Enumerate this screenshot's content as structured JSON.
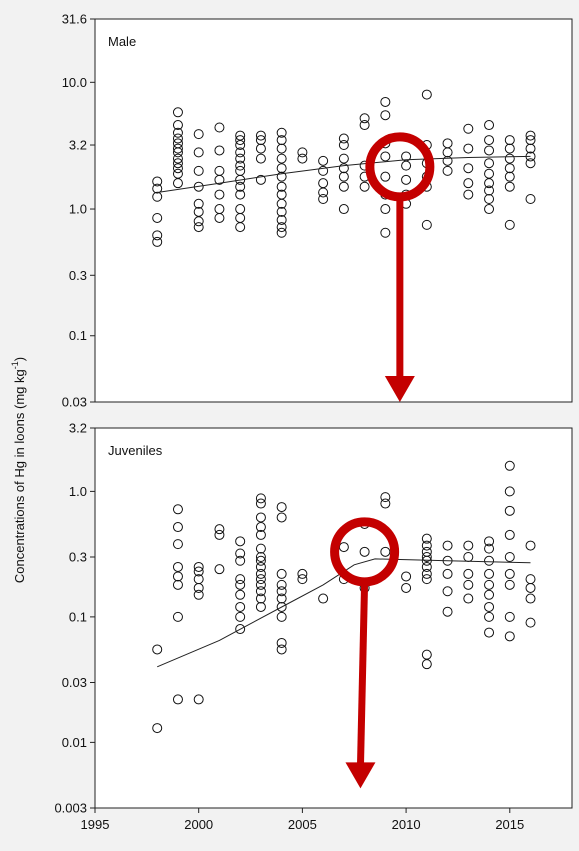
{
  "chart_data": {
    "type": "scatter",
    "ylabel": "Concentrations of Hg in loons (mg kg",
    "ylabel_sup": "-1",
    "ylabel_close": ")",
    "xlim": [
      1995,
      2018
    ],
    "x_ticks": [
      1995,
      2000,
      2005,
      2010,
      2015
    ],
    "x_tick_labels": [
      "1995",
      "2000",
      "2005",
      "2010",
      "2015"
    ],
    "annotation_color": "#c40000",
    "panels": [
      {
        "id": "male",
        "label": "Male",
        "yscale": "log",
        "ylim": [
          0.03,
          31.6
        ],
        "y_ticks": [
          0.03,
          0.1,
          0.3,
          1.0,
          3.2,
          10.0,
          31.6
        ],
        "y_tick_labels": [
          "0.03",
          "0.1",
          "0.3",
          "1.0",
          "3.2",
          "10.0",
          "31.6"
        ],
        "points": [
          [
            1998,
            0.55
          ],
          [
            1998,
            0.62
          ],
          [
            1998,
            0.85
          ],
          [
            1998,
            1.25
          ],
          [
            1998,
            1.45
          ],
          [
            1998,
            1.65
          ],
          [
            1999,
            1.6
          ],
          [
            1999,
            1.9
          ],
          [
            1999,
            2.1
          ],
          [
            1999,
            2.3
          ],
          [
            1999,
            2.5
          ],
          [
            1999,
            2.8
          ],
          [
            1999,
            3.0
          ],
          [
            1999,
            3.3
          ],
          [
            1999,
            3.6
          ],
          [
            1999,
            4.0
          ],
          [
            1999,
            4.6
          ],
          [
            1999,
            5.8
          ],
          [
            2000,
            0.72
          ],
          [
            2000,
            0.8
          ],
          [
            2000,
            0.95
          ],
          [
            2000,
            1.1
          ],
          [
            2000,
            1.5
          ],
          [
            2000,
            2.0
          ],
          [
            2000,
            2.8
          ],
          [
            2000,
            3.9
          ],
          [
            2001,
            0.85
          ],
          [
            2001,
            1.0
          ],
          [
            2001,
            1.3
          ],
          [
            2001,
            1.7
          ],
          [
            2001,
            2.0
          ],
          [
            2001,
            2.9
          ],
          [
            2001,
            4.4
          ],
          [
            2002,
            0.72
          ],
          [
            2002,
            0.85
          ],
          [
            2002,
            1.0
          ],
          [
            2002,
            1.3
          ],
          [
            2002,
            1.5
          ],
          [
            2002,
            1.7
          ],
          [
            2002,
            2.0
          ],
          [
            2002,
            2.2
          ],
          [
            2002,
            2.5
          ],
          [
            2002,
            2.8
          ],
          [
            2002,
            3.2
          ],
          [
            2002,
            3.5
          ],
          [
            2002,
            3.8
          ],
          [
            2003,
            1.7
          ],
          [
            2003,
            2.5
          ],
          [
            2003,
            3.0
          ],
          [
            2003,
            3.5
          ],
          [
            2003,
            3.8
          ],
          [
            2004,
            0.65
          ],
          [
            2004,
            0.72
          ],
          [
            2004,
            0.82
          ],
          [
            2004,
            0.95
          ],
          [
            2004,
            1.1
          ],
          [
            2004,
            1.3
          ],
          [
            2004,
            1.5
          ],
          [
            2004,
            1.8
          ],
          [
            2004,
            2.1
          ],
          [
            2004,
            2.5
          ],
          [
            2004,
            3.0
          ],
          [
            2004,
            3.5
          ],
          [
            2004,
            4.0
          ],
          [
            2005,
            2.5
          ],
          [
            2005,
            2.8
          ],
          [
            2006,
            1.2
          ],
          [
            2006,
            1.35
          ],
          [
            2006,
            1.6
          ],
          [
            2006,
            2.0
          ],
          [
            2006,
            2.4
          ],
          [
            2007,
            1.0
          ],
          [
            2007,
            1.5
          ],
          [
            2007,
            1.8
          ],
          [
            2007,
            2.1
          ],
          [
            2007,
            2.5
          ],
          [
            2007,
            3.2
          ],
          [
            2007,
            3.6
          ],
          [
            2008,
            1.5
          ],
          [
            2008,
            1.8
          ],
          [
            2008,
            2.2
          ],
          [
            2008,
            4.6
          ],
          [
            2008,
            5.2
          ],
          [
            2009,
            0.65
          ],
          [
            2009,
            1.0
          ],
          [
            2009,
            1.3
          ],
          [
            2009,
            1.8
          ],
          [
            2009,
            2.6
          ],
          [
            2009,
            3.3
          ],
          [
            2009,
            5.5
          ],
          [
            2009,
            7.0
          ],
          [
            2010,
            1.1
          ],
          [
            2010,
            1.3
          ],
          [
            2010,
            1.7
          ],
          [
            2010,
            2.2
          ],
          [
            2010,
            2.6
          ],
          [
            2011,
            0.75
          ],
          [
            2011,
            1.5
          ],
          [
            2011,
            1.8
          ],
          [
            2011,
            2.3
          ],
          [
            2011,
            3.2
          ],
          [
            2011,
            8.0
          ],
          [
            2012,
            2.0
          ],
          [
            2012,
            2.4
          ],
          [
            2012,
            2.8
          ],
          [
            2012,
            3.3
          ],
          [
            2013,
            1.3
          ],
          [
            2013,
            1.6
          ],
          [
            2013,
            2.1
          ],
          [
            2013,
            3.0
          ],
          [
            2013,
            4.3
          ],
          [
            2014,
            1.0
          ],
          [
            2014,
            1.2
          ],
          [
            2014,
            1.4
          ],
          [
            2014,
            1.6
          ],
          [
            2014,
            1.9
          ],
          [
            2014,
            2.3
          ],
          [
            2014,
            2.9
          ],
          [
            2014,
            3.5
          ],
          [
            2014,
            4.6
          ],
          [
            2015,
            0.75
          ],
          [
            2015,
            1.5
          ],
          [
            2015,
            1.8
          ],
          [
            2015,
            2.1
          ],
          [
            2015,
            2.5
          ],
          [
            2015,
            3.0
          ],
          [
            2015,
            3.5
          ],
          [
            2016,
            1.2
          ],
          [
            2016,
            2.3
          ],
          [
            2016,
            2.6
          ],
          [
            2016,
            3.0
          ],
          [
            2016,
            3.5
          ],
          [
            2016,
            3.8
          ]
        ],
        "trend": [
          [
            1998,
            1.35
          ],
          [
            2001,
            1.6
          ],
          [
            2004,
            1.9
          ],
          [
            2007,
            2.2
          ],
          [
            2010,
            2.45
          ],
          [
            2013,
            2.55
          ],
          [
            2016,
            2.6
          ]
        ],
        "highlight": {
          "x": 2009.7,
          "y": 2.15
        },
        "arrow_end": {
          "x": 2009.7,
          "y": 0.03
        }
      },
      {
        "id": "juveniles",
        "label": "Juveniles",
        "yscale": "log",
        "ylim": [
          0.003,
          3.2
        ],
        "y_ticks": [
          0.003,
          0.01,
          0.03,
          0.1,
          0.3,
          1.0,
          3.2
        ],
        "y_tick_labels": [
          "0.003",
          "0.01",
          "0.03",
          "0.1",
          "0.3",
          "1.0",
          "3.2"
        ],
        "points": [
          [
            1998,
            0.013
          ],
          [
            1998,
            0.055
          ],
          [
            1999,
            0.022
          ],
          [
            1999,
            0.1
          ],
          [
            1999,
            0.18
          ],
          [
            1999,
            0.21
          ],
          [
            1999,
            0.25
          ],
          [
            1999,
            0.38
          ],
          [
            1999,
            0.52
          ],
          [
            1999,
            0.72
          ],
          [
            2000,
            0.022
          ],
          [
            2000,
            0.15
          ],
          [
            2000,
            0.17
          ],
          [
            2000,
            0.2
          ],
          [
            2000,
            0.23
          ],
          [
            2000,
            0.25
          ],
          [
            2001,
            0.24
          ],
          [
            2001,
            0.45
          ],
          [
            2001,
            0.5
          ],
          [
            2002,
            0.08
          ],
          [
            2002,
            0.1
          ],
          [
            2002,
            0.12
          ],
          [
            2002,
            0.15
          ],
          [
            2002,
            0.18
          ],
          [
            2002,
            0.2
          ],
          [
            2002,
            0.28
          ],
          [
            2002,
            0.32
          ],
          [
            2002,
            0.4
          ],
          [
            2003,
            0.12
          ],
          [
            2003,
            0.14
          ],
          [
            2003,
            0.16
          ],
          [
            2003,
            0.18
          ],
          [
            2003,
            0.2
          ],
          [
            2003,
            0.22
          ],
          [
            2003,
            0.25
          ],
          [
            2003,
            0.28
          ],
          [
            2003,
            0.3
          ],
          [
            2003,
            0.35
          ],
          [
            2003,
            0.45
          ],
          [
            2003,
            0.52
          ],
          [
            2003,
            0.62
          ],
          [
            2003,
            0.8
          ],
          [
            2003,
            0.88
          ],
          [
            2004,
            0.055
          ],
          [
            2004,
            0.062
          ],
          [
            2004,
            0.1
          ],
          [
            2004,
            0.12
          ],
          [
            2004,
            0.14
          ],
          [
            2004,
            0.16
          ],
          [
            2004,
            0.18
          ],
          [
            2004,
            0.22
          ],
          [
            2004,
            0.62
          ],
          [
            2004,
            0.75
          ],
          [
            2005,
            0.2
          ],
          [
            2005,
            0.22
          ],
          [
            2006,
            0.14
          ],
          [
            2007,
            0.2
          ],
          [
            2007,
            0.36
          ],
          [
            2008,
            0.17
          ],
          [
            2008,
            0.33
          ],
          [
            2008,
            0.55
          ],
          [
            2009,
            0.33
          ],
          [
            2009,
            0.8
          ],
          [
            2009,
            0.9
          ],
          [
            2010,
            0.17
          ],
          [
            2010,
            0.21
          ],
          [
            2011,
            0.042
          ],
          [
            2011,
            0.05
          ],
          [
            2011,
            0.2
          ],
          [
            2011,
            0.22
          ],
          [
            2011,
            0.25
          ],
          [
            2011,
            0.28
          ],
          [
            2011,
            0.3
          ],
          [
            2011,
            0.33
          ],
          [
            2011,
            0.37
          ],
          [
            2011,
            0.42
          ],
          [
            2012,
            0.11
          ],
          [
            2012,
            0.16
          ],
          [
            2012,
            0.22
          ],
          [
            2012,
            0.28
          ],
          [
            2012,
            0.37
          ],
          [
            2013,
            0.14
          ],
          [
            2013,
            0.18
          ],
          [
            2013,
            0.22
          ],
          [
            2013,
            0.3
          ],
          [
            2013,
            0.37
          ],
          [
            2014,
            0.075
          ],
          [
            2014,
            0.1
          ],
          [
            2014,
            0.12
          ],
          [
            2014,
            0.15
          ],
          [
            2014,
            0.18
          ],
          [
            2014,
            0.22
          ],
          [
            2014,
            0.28
          ],
          [
            2014,
            0.35
          ],
          [
            2014,
            0.4
          ],
          [
            2015,
            0.07
          ],
          [
            2015,
            0.1
          ],
          [
            2015,
            0.18
          ],
          [
            2015,
            0.22
          ],
          [
            2015,
            0.3
          ],
          [
            2015,
            0.45
          ],
          [
            2015,
            0.7
          ],
          [
            2015,
            1.0
          ],
          [
            2015,
            1.6
          ],
          [
            2016,
            0.09
          ],
          [
            2016,
            0.14
          ],
          [
            2016,
            0.17
          ],
          [
            2016,
            0.2
          ],
          [
            2016,
            0.37
          ]
        ],
        "trend": [
          [
            1998,
            0.04
          ],
          [
            2001,
            0.065
          ],
          [
            2004,
            0.12
          ],
          [
            2006,
            0.18
          ],
          [
            2007.5,
            0.26
          ],
          [
            2008.5,
            0.29
          ],
          [
            2012,
            0.28
          ],
          [
            2016,
            0.27
          ]
        ],
        "highlight": {
          "x": 2008.0,
          "y": 0.33
        },
        "arrow_end": {
          "x": 2007.8,
          "y": 0.0043
        }
      }
    ]
  }
}
